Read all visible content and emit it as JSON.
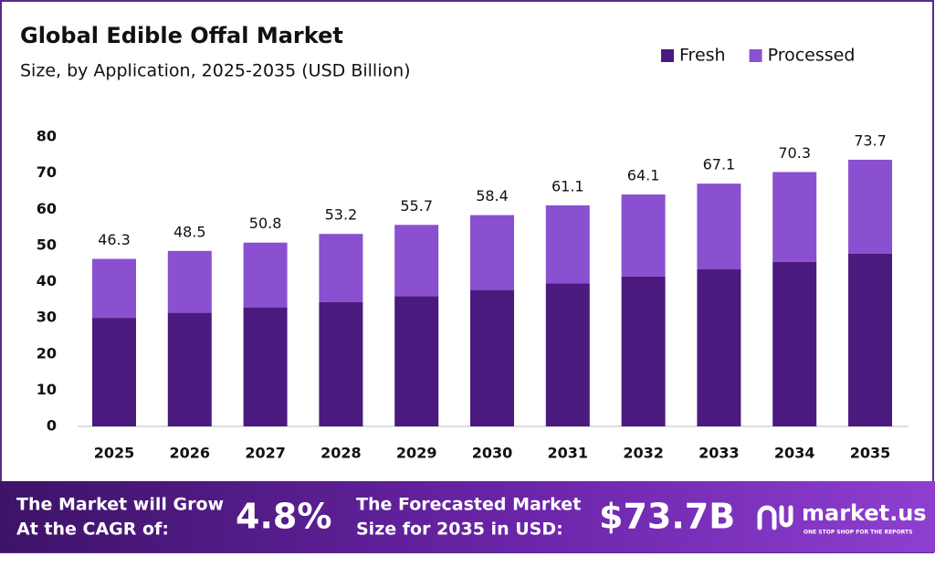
{
  "chart_data": {
    "type": "stacked-bar",
    "title": "Global Edible Offal Market",
    "subtitle": "Size, by Application, 2025-2035 (USD Billion)",
    "categories": [
      "2025",
      "2026",
      "2027",
      "2028",
      "2029",
      "2030",
      "2031",
      "2032",
      "2033",
      "2034",
      "2035"
    ],
    "series": [
      {
        "name": "Fresh",
        "color": "#4a1a7e",
        "values": [
          30.0,
          31.4,
          32.9,
          34.4,
          36.0,
          37.7,
          39.5,
          41.4,
          43.4,
          45.5,
          47.7
        ]
      },
      {
        "name": "Processed",
        "color": "#8a50d0",
        "values": [
          16.3,
          17.1,
          17.9,
          18.8,
          19.7,
          20.7,
          21.6,
          22.7,
          23.7,
          24.8,
          26.0
        ]
      }
    ],
    "totals": [
      46.3,
      48.5,
      50.8,
      53.2,
      55.7,
      58.4,
      61.1,
      64.1,
      67.1,
      70.3,
      73.7
    ],
    "ylim": [
      0,
      80
    ],
    "yticks": [
      0,
      10,
      20,
      30,
      40,
      50,
      60,
      70,
      80
    ],
    "legend": "top-right"
  },
  "footer": {
    "cagr_text": [
      "The Market will Grow",
      "At the CAGR of:"
    ],
    "cagr_value": "4.8%",
    "forecast_text": [
      "The Forecasted Market",
      "Size for 2035 in USD:"
    ],
    "forecast_value": "$73.7B",
    "brand": "market.us",
    "tagline": "ONE STOP SHOP FOR THE REPORTS"
  }
}
